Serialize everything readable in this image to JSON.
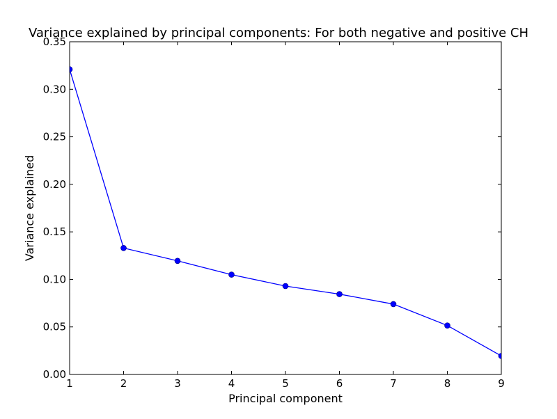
{
  "chart_data": {
    "type": "line",
    "title": "Variance explained by principal components: For both negative and positive CH",
    "xlabel": "Principal component",
    "ylabel": "Variance explained",
    "xlim": [
      1,
      9
    ],
    "ylim": [
      0,
      0.35
    ],
    "x_ticks": [
      "1",
      "2",
      "3",
      "4",
      "5",
      "6",
      "7",
      "8",
      "9"
    ],
    "y_ticks": [
      "0.00",
      "0.05",
      "0.10",
      "0.15",
      "0.20",
      "0.25",
      "0.30",
      "0.35"
    ],
    "grid": false,
    "series": [
      {
        "x": [
          1,
          2,
          3,
          4,
          5,
          6,
          7,
          8,
          9
        ],
        "values": [
          0.321,
          0.133,
          0.1195,
          0.105,
          0.093,
          0.0845,
          0.074,
          0.0515,
          0.0195
        ],
        "color": "#0000ff",
        "marker": "circle"
      }
    ]
  }
}
